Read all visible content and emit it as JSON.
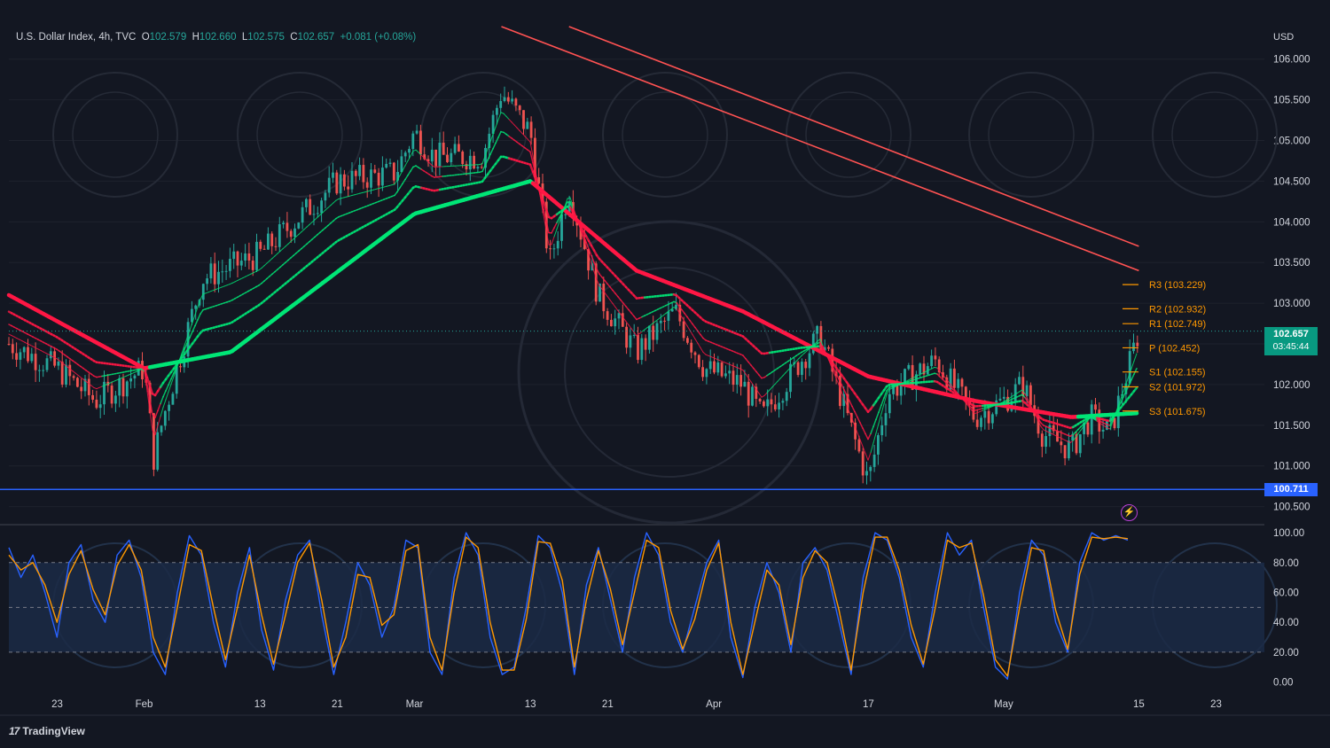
{
  "header": {
    "symbol": "U.S. Dollar Index, 4h, TVC",
    "open_label": "O",
    "open": "102.579",
    "high_label": "H",
    "high": "102.660",
    "low_label": "L",
    "low": "102.575",
    "close_label": "C",
    "close": "102.657",
    "change": "+0.081 (+0.08%)"
  },
  "currency": "USD",
  "current_price": {
    "value": "102.657",
    "countdown": "03:45:44",
    "color": "#089981"
  },
  "support_line": {
    "value": "100.711",
    "color": "#2962ff"
  },
  "brand": "TradingView",
  "bolt_icon": "lightning-icon",
  "colors": {
    "background": "#131722",
    "up": "#26a69a",
    "down": "#ef5350",
    "ma_green": "#00e676",
    "ma_red": "#ff1744",
    "k_line": "#2962ff",
    "d_line": "#ff9800",
    "pivot": "#ff9800"
  },
  "chart_data": [
    {
      "type": "candlestick",
      "title": "U.S. Dollar Index, 4h, TVC",
      "ylabel": "USD",
      "ylim": [
        100.3,
        106.4
      ],
      "y_ticks": [
        "106.000",
        "105.500",
        "105.000",
        "104.500",
        "104.000",
        "103.500",
        "103.000",
        "102.500",
        "102.000",
        "101.500",
        "101.000",
        "100.500"
      ],
      "x_ticks": [
        "23",
        "Feb",
        "13",
        "21",
        "Mar",
        "13",
        "21",
        "Apr",
        "17",
        "May",
        "15",
        "23"
      ],
      "price_path": {
        "x": [
          "Jan 18",
          "Jan 23",
          "Jan 27",
          "Feb 1",
          "Feb 2",
          "Feb 3",
          "Feb 7",
          "Feb 13",
          "Feb 21",
          "Feb 27",
          "Mar 1",
          "Mar 3",
          "Mar 8",
          "Mar 10",
          "Mar 13",
          "Mar 15",
          "Mar 17",
          "Mar 20",
          "Mar 24",
          "Mar 28",
          "Mar 31",
          "Apr 4",
          "Apr 6",
          "Apr 10",
          "Apr 12",
          "Apr 14",
          "Apr 17",
          "Apr 19",
          "Apr 24",
          "Apr 28",
          "May 1",
          "May 3",
          "May 5",
          "May 8",
          "May 10",
          "May 12",
          "May 15"
        ],
        "close": [
          102.5,
          102.2,
          101.8,
          102.2,
          101.1,
          101.6,
          103.3,
          103.6,
          104.5,
          104.6,
          105.1,
          104.8,
          104.8,
          105.6,
          105.1,
          103.5,
          104.4,
          103.1,
          102.4,
          102.9,
          102.2,
          102.0,
          101.6,
          102.3,
          102.6,
          101.9,
          100.8,
          101.9,
          102.3,
          101.6,
          101.8,
          102.0,
          101.4,
          101.2,
          101.6,
          101.4,
          102.657
        ]
      },
      "moving_averages": [
        {
          "name": "",
          "color": "#ff1744",
          "role": "slow",
          "x": [
            "Jan 18",
            "Feb 1",
            "Feb 10",
            "Mar 1",
            "Mar 13",
            "Mar 24",
            "Apr 4",
            "Apr 17",
            "Apr 28",
            "May 8",
            "May 15"
          ],
          "values": [
            103.1,
            102.2,
            102.4,
            104.1,
            104.5,
            103.4,
            102.9,
            102.1,
            101.8,
            101.6,
            101.65
          ]
        },
        {
          "name": "",
          "color": "#ff5252",
          "role": "long",
          "x": [
            "Mar 10",
            "May 15"
          ],
          "values": [
            106.4,
            103.4
          ]
        },
        {
          "name": "",
          "color": "#ff5252",
          "role": "long",
          "x": [
            "Mar 17",
            "May 15"
          ],
          "values": [
            106.4,
            103.7
          ]
        }
      ],
      "pivots": [
        {
          "label": "R3 (103.229)",
          "value": 103.229
        },
        {
          "label": "R2 (102.932)",
          "value": 102.932
        },
        {
          "label": "R1 (102.749)",
          "value": 102.749
        },
        {
          "label": "P (102.452)",
          "value": 102.452
        },
        {
          "label": "S1 (102.155)",
          "value": 102.155
        },
        {
          "label": "S2 (101.972)",
          "value": 101.972
        },
        {
          "label": "S3 (101.675)",
          "value": 101.675
        }
      ]
    },
    {
      "type": "line",
      "title": "",
      "ylim": [
        -5,
        103
      ],
      "y_ticks": [
        "100.00",
        "80.00",
        "60.00",
        "40.00",
        "20.00",
        "0.00"
      ],
      "bands": [
        20,
        50,
        80
      ],
      "series": [
        {
          "name": "",
          "color": "#2962ff",
          "values": [
            90,
            70,
            85,
            60,
            30,
            80,
            92,
            55,
            40,
            85,
            95,
            70,
            20,
            5,
            60,
            98,
            85,
            40,
            10,
            60,
            90,
            35,
            8,
            55,
            85,
            95,
            45,
            5,
            40,
            80,
            65,
            30,
            50,
            95,
            90,
            20,
            5,
            70,
            100,
            85,
            30,
            5,
            10,
            50,
            98,
            90,
            60,
            5,
            65,
            90,
            55,
            20,
            70,
            100,
            85,
            40,
            20,
            50,
            80,
            95,
            30,
            3,
            50,
            80,
            60,
            20,
            80,
            90,
            75,
            40,
            5,
            70,
            100,
            95,
            70,
            30,
            10,
            60,
            100,
            85,
            95,
            50,
            10,
            2,
            60,
            95,
            85,
            40,
            20,
            80,
            100,
            95,
            98,
            95
          ]
        },
        {
          "name": "",
          "color": "#ff9800",
          "values": [
            85,
            75,
            80,
            65,
            40,
            72,
            88,
            62,
            45,
            78,
            92,
            75,
            30,
            10,
            50,
            92,
            88,
            50,
            15,
            50,
            85,
            45,
            12,
            45,
            80,
            93,
            55,
            10,
            30,
            72,
            70,
            38,
            45,
            88,
            92,
            30,
            8,
            60,
            97,
            90,
            40,
            8,
            8,
            42,
            94,
            93,
            68,
            10,
            55,
            88,
            62,
            25,
            60,
            95,
            90,
            48,
            22,
            42,
            75,
            93,
            40,
            5,
            40,
            75,
            65,
            25,
            70,
            88,
            80,
            48,
            8,
            60,
            97,
            97,
            75,
            38,
            12,
            50,
            95,
            90,
            93,
            58,
            15,
            4,
            50,
            90,
            88,
            48,
            22,
            72,
            97,
            96,
            97,
            96
          ]
        }
      ]
    }
  ]
}
